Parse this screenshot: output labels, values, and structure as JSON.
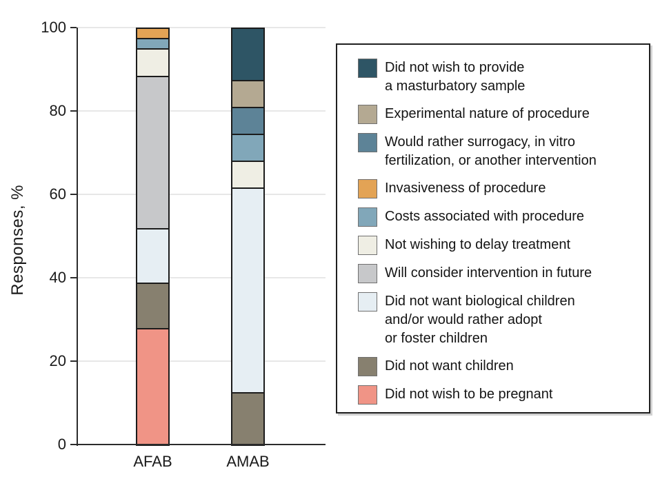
{
  "figure": {
    "ylabel": "Responses, %",
    "yticks": [
      100,
      80,
      60,
      40,
      20,
      0
    ],
    "categories": [
      "AFAB",
      "AMAB"
    ],
    "colors": {
      "axis": "#2b2b2b",
      "gridline": "#e7e7e7",
      "segment_border": "#1b1b1b",
      "text": "#1a1a1a"
    }
  },
  "chart_data": {
    "type": "bar",
    "stacked": true,
    "title": "",
    "xlabel": "",
    "ylabel": "Responses, %",
    "ylim": [
      0,
      100
    ],
    "grid": true,
    "legend_position": "right",
    "categories": [
      "AFAB",
      "AMAB"
    ],
    "series": [
      {
        "name": "Did not wish to provide a masturbatory sample",
        "color": "#2e5565",
        "values": [
          0,
          12.5
        ]
      },
      {
        "name": "Experimental nature of procedure",
        "color": "#b4a992",
        "values": [
          0,
          6.25
        ]
      },
      {
        "name": "Would rather surrogacy, in vitro fertilization, or another intervention",
        "color": "#5d8397",
        "values": [
          0,
          6.25
        ]
      },
      {
        "name": "Invasiveness of procedure",
        "color": "#e3a355",
        "values": [
          2.2,
          0
        ]
      },
      {
        "name": "Costs associated with procedure",
        "color": "#81a7b9",
        "values": [
          2.2,
          6.25
        ]
      },
      {
        "name": "Not wishing to delay treatment",
        "color": "#efeee4",
        "values": [
          6.5,
          6.25
        ]
      },
      {
        "name": "Will consider intervention in future",
        "color": "#c7c8ca",
        "values": [
          37,
          0
        ]
      },
      {
        "name": "Did not want biological children and/or would rather adopt or foster children",
        "color": "#e6eef3",
        "values": [
          13,
          50
        ]
      },
      {
        "name": "Did not want children",
        "color": "#87806f",
        "values": [
          10.9,
          12.5
        ]
      },
      {
        "name": "Did not wish to be pregnant",
        "color": "#f09486",
        "values": [
          28.3,
          0
        ]
      }
    ]
  },
  "legend": {
    "items": [
      {
        "lines": [
          "Did not wish to provide",
          "a masturbatory sample"
        ],
        "color": "#2e5565"
      },
      {
        "lines": [
          "Experimental nature of procedure"
        ],
        "color": "#b4a992"
      },
      {
        "lines": [
          "Would rather surrogacy, in vitro",
          "fertilization, or another intervention"
        ],
        "color": "#5d8397"
      },
      {
        "lines": [
          "Invasiveness of procedure"
        ],
        "color": "#e3a355"
      },
      {
        "lines": [
          "Costs associated with procedure"
        ],
        "color": "#81a7b9"
      },
      {
        "lines": [
          "Not wishing to delay treatment"
        ],
        "color": "#efeee4"
      },
      {
        "lines": [
          "Will consider intervention in future"
        ],
        "color": "#c7c8ca"
      },
      {
        "lines": [
          "Did not want biological children",
          "and/or would rather adopt",
          "or foster children"
        ],
        "color": "#e6eef3"
      },
      {
        "lines": [
          "Did not want children"
        ],
        "color": "#87806f"
      },
      {
        "lines": [
          "Did not wish to be pregnant"
        ],
        "color": "#f09486"
      }
    ]
  }
}
